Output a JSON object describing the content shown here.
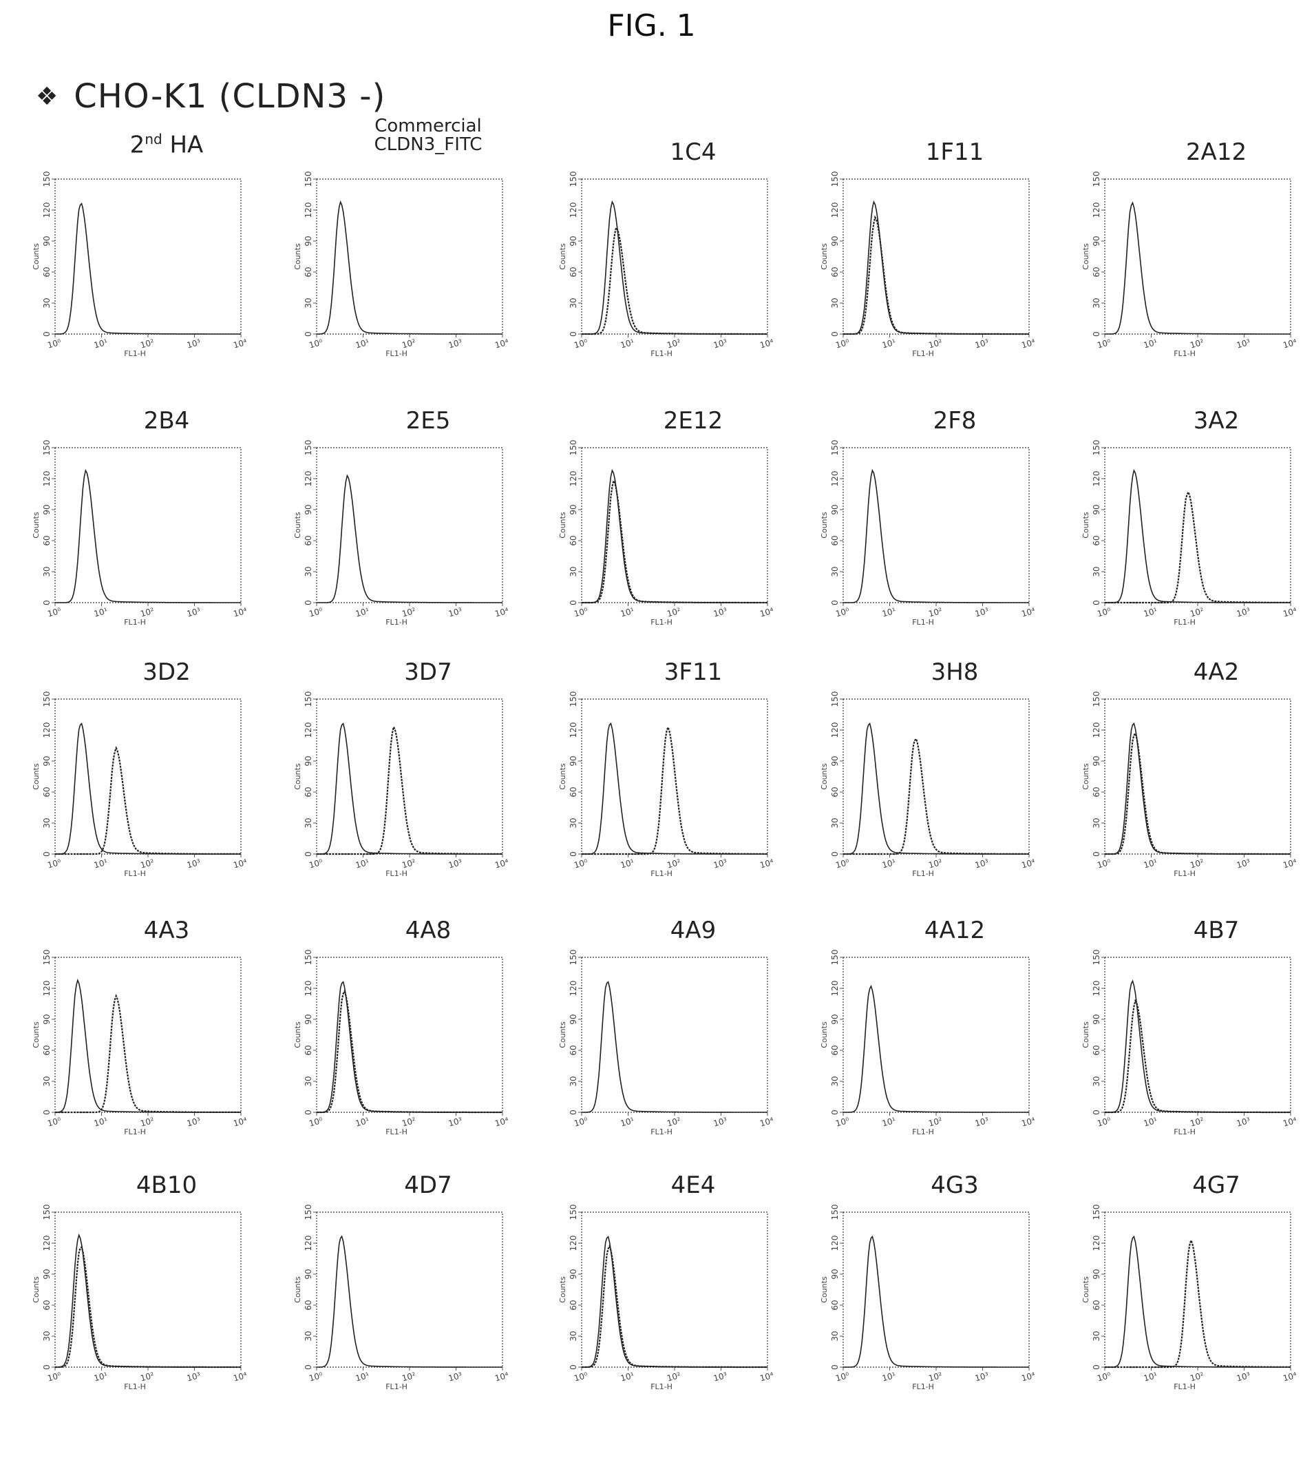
{
  "figure": {
    "label": "FIG. 1",
    "heading_bullet": "❖",
    "heading": "CHO-K1 (CLDN3 -)"
  },
  "axes": {
    "y_label": "Counts",
    "x_label": "FL1-H",
    "y_ticks": [
      "0",
      "30",
      "60",
      "90",
      "120",
      "150"
    ],
    "x_ticks": [
      "10⁰",
      "10¹",
      "10²",
      "10³",
      "10⁴"
    ]
  },
  "chart_data": {
    "type": "histogram-overlay",
    "x_scale": "log",
    "xlim": [
      1,
      10000
    ],
    "ylim": [
      0,
      150
    ],
    "line_color": "#222222",
    "panels": [
      {
        "title": "2nd HA",
        "title_main": "2",
        "title_sup": "nd",
        "title_rest": " HA",
        "peaks": [
          [
            3.5,
            125
          ]
        ]
      },
      {
        "title": "Commercial CLDN3_FITC",
        "title_lines": [
          "Commercial",
          "CLDN3_FITC"
        ],
        "peaks": [
          [
            3.2,
            125
          ]
        ]
      },
      {
        "title": "1C4",
        "peaks": [
          [
            4.5,
            125
          ],
          [
            5.5,
            100
          ]
        ]
      },
      {
        "title": "1F11",
        "peaks": [
          [
            4.5,
            125
          ],
          [
            4.8,
            110
          ]
        ]
      },
      {
        "title": "2A12",
        "peaks": [
          [
            3.8,
            125
          ]
        ]
      },
      {
        "title": "2B4",
        "peaks": [
          [
            4.5,
            125
          ]
        ]
      },
      {
        "title": "2E5",
        "peaks": [
          [
            4.5,
            120
          ]
        ]
      },
      {
        "title": "2E12",
        "peaks": [
          [
            4.5,
            125
          ],
          [
            4.8,
            115
          ]
        ]
      },
      {
        "title": "2F8",
        "peaks": [
          [
            4.2,
            125
          ]
        ]
      },
      {
        "title": "3A2",
        "peaks": [
          [
            4.2,
            125
          ],
          [
            60,
            105
          ]
        ]
      },
      {
        "title": "3D2",
        "peaks": [
          [
            3.5,
            125
          ],
          [
            20,
            100
          ]
        ]
      },
      {
        "title": "3D7",
        "peaks": [
          [
            3.5,
            125
          ],
          [
            45,
            120
          ]
        ]
      },
      {
        "title": "3F11",
        "peaks": [
          [
            4.0,
            125
          ],
          [
            70,
            120
          ]
        ]
      },
      {
        "title": "3H8",
        "peaks": [
          [
            3.5,
            125
          ],
          [
            35,
            110
          ]
        ]
      },
      {
        "title": "4A2",
        "peaks": [
          [
            4.0,
            125
          ],
          [
            4.3,
            115
          ]
        ]
      },
      {
        "title": "4A3",
        "peaks": [
          [
            3.0,
            125
          ],
          [
            20,
            110
          ]
        ]
      },
      {
        "title": "4A8",
        "peaks": [
          [
            3.5,
            125
          ],
          [
            3.8,
            115
          ]
        ]
      },
      {
        "title": "4A9",
        "peaks": [
          [
            3.5,
            125
          ]
        ]
      },
      {
        "title": "4A12",
        "peaks": [
          [
            3.8,
            120
          ]
        ]
      },
      {
        "title": "4B7",
        "peaks": [
          [
            3.8,
            125
          ],
          [
            4.5,
            105
          ]
        ]
      },
      {
        "title": "4B10",
        "peaks": [
          [
            3.2,
            125
          ],
          [
            3.5,
            115
          ]
        ]
      },
      {
        "title": "4D7",
        "peaks": [
          [
            3.3,
            125
          ]
        ]
      },
      {
        "title": "4E4",
        "peaks": [
          [
            3.5,
            125
          ],
          [
            3.8,
            115
          ]
        ]
      },
      {
        "title": "4G3",
        "peaks": [
          [
            4.0,
            125
          ]
        ]
      },
      {
        "title": "4G7",
        "peaks": [
          [
            4.0,
            125
          ],
          [
            70,
            120
          ]
        ]
      }
    ]
  }
}
